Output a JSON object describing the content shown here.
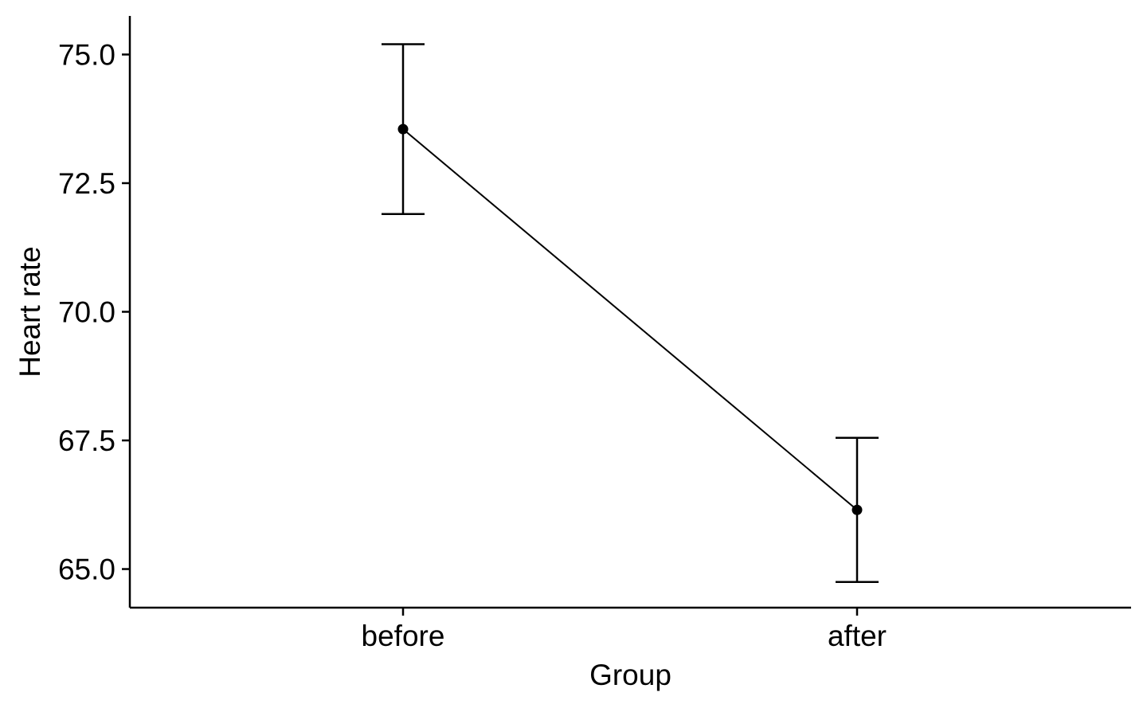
{
  "chart_data": {
    "type": "line",
    "title": "",
    "xlabel": "Group",
    "ylabel": "Heart rate",
    "categories": [
      "before",
      "after"
    ],
    "series": [
      {
        "values": [
          73.55,
          66.15
        ],
        "error_low": [
          71.9,
          64.75
        ],
        "error_high": [
          75.2,
          67.55
        ]
      }
    ],
    "ylim": [
      64.25,
      75.75
    ],
    "y_ticks": [
      65.0,
      67.5,
      70.0,
      72.5,
      75.0
    ],
    "y_tick_labels": [
      "65.0",
      "67.5",
      "70.0",
      "72.5",
      "75.0"
    ],
    "grid": false,
    "legend": "none",
    "colors": {
      "line": "#000000",
      "point": "#000000",
      "axis": "#000000",
      "text": "#000000"
    }
  }
}
